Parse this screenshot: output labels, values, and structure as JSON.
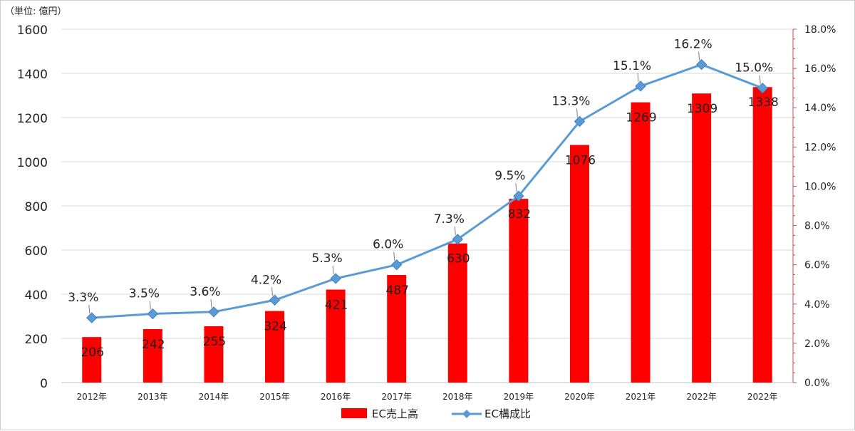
{
  "chart_data": {
    "type": "bar+line",
    "unit_label": "（単位: 億円）",
    "categories": [
      "2012年",
      "2013年",
      "2014年",
      "2015年",
      "2016年",
      "2017年",
      "2018年",
      "2019年",
      "2020年",
      "2021年",
      "2022年",
      "2022年"
    ],
    "series": [
      {
        "name": "EC売上高",
        "type": "bar",
        "axis": "left",
        "color": "#ff0000",
        "values": [
          206,
          242,
          255,
          324,
          421,
          487,
          630,
          832,
          1076,
          1269,
          1309,
          1338
        ],
        "labels": [
          "206",
          "242",
          "255",
          "324",
          "421",
          "487",
          "630",
          "832",
          "1076",
          "1269",
          "1309",
          "1338"
        ]
      },
      {
        "name": "EC構成比",
        "type": "line",
        "axis": "right",
        "color": "#5b9bd5",
        "values": [
          3.3,
          3.5,
          3.6,
          4.2,
          5.3,
          6.0,
          7.3,
          9.5,
          13.3,
          15.1,
          16.2,
          15.0
        ],
        "labels": [
          "3.3%",
          "3.5%",
          "3.6%",
          "4.2%",
          "5.3%",
          "6.0%",
          "7.3%",
          "9.5%",
          "13.3%",
          "15.1%",
          "16.2%",
          "15.0%"
        ]
      }
    ],
    "y_left": {
      "ylim": [
        0,
        1600
      ],
      "ticks": [
        0,
        200,
        400,
        600,
        800,
        1000,
        1200,
        1400,
        1600
      ],
      "tick_labels": [
        "0",
        "200",
        "400",
        "600",
        "800",
        "1000",
        "1200",
        "1400",
        "1600"
      ]
    },
    "y_right": {
      "ylim": [
        0,
        18
      ],
      "ticks": [
        0,
        2,
        4,
        6,
        8,
        10,
        12,
        14,
        16,
        18
      ],
      "tick_labels": [
        "0.0%",
        "2.0%",
        "4.0%",
        "6.0%",
        "8.0%",
        "10.0%",
        "12.0%",
        "14.0%",
        "16.0%",
        "18.0%"
      ],
      "axis_color": "#c0504d"
    },
    "grid": true,
    "legend_position": "bottom",
    "legend": [
      {
        "name": "EC売上高",
        "color": "#ff0000",
        "marker": "bar"
      },
      {
        "name": "EC構成比",
        "color": "#5b9bd5",
        "marker": "diamond-line"
      }
    ]
  }
}
